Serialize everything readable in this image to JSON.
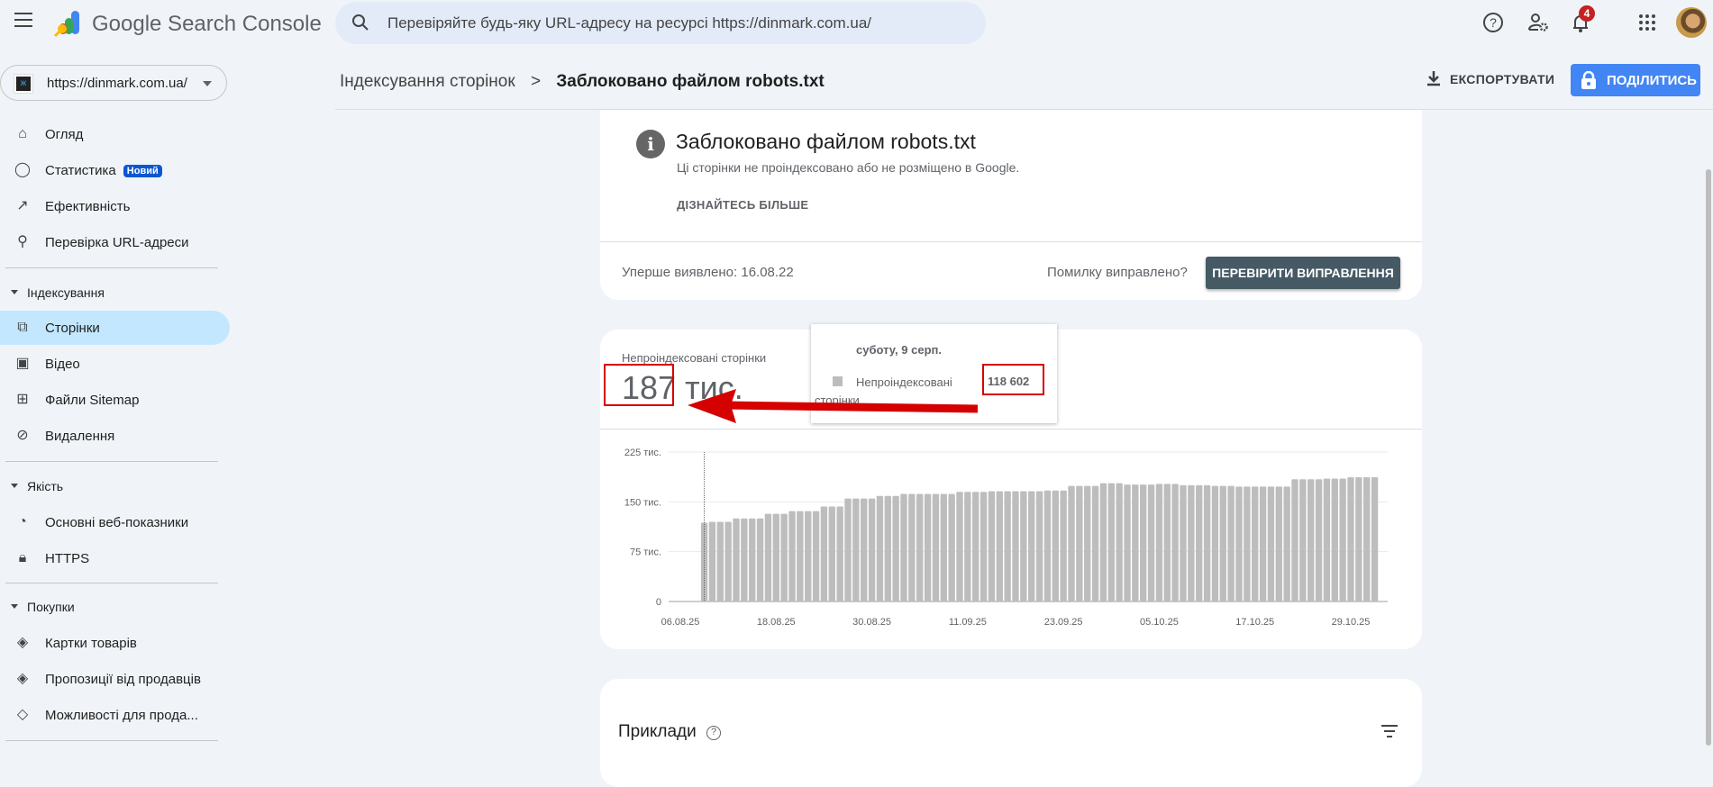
{
  "app": {
    "title": "Google Search Console",
    "search_placeholder": "Перевіряйте будь-яку URL-адресу на ресурсі https://dinmark.com.ua/",
    "notification_count": "4",
    "property": "https://dinmark.com.ua/",
    "property_favicon": "ж"
  },
  "header_icons": [
    "help-icon",
    "admin-settings-icon",
    "bell-icon",
    "apps-icon",
    "avatar"
  ],
  "sidebar": {
    "top_items": [
      {
        "label": "Огляд",
        "icon": "home-icon"
      },
      {
        "label": "Статистика",
        "icon": "lightbulb-icon",
        "badge": "Новий"
      },
      {
        "label": "Ефективність",
        "icon": "trending-up-icon"
      },
      {
        "label": "Перевірка URL-адреси",
        "icon": "search-icon"
      }
    ],
    "sections": [
      {
        "title": "Індексування",
        "items": [
          {
            "label": "Сторінки",
            "icon": "pages-icon",
            "active": true
          },
          {
            "label": "Відео",
            "icon": "video-icon"
          },
          {
            "label": "Файли Sitemap",
            "icon": "sitemap-icon"
          },
          {
            "label": "Видалення",
            "icon": "visibility-off-icon"
          }
        ]
      },
      {
        "title": "Якість",
        "items": [
          {
            "label": "Основні веб-показники",
            "icon": "speed-icon"
          },
          {
            "label": "HTTPS",
            "icon": "lock-icon"
          }
        ]
      },
      {
        "title": "Покупки",
        "items": [
          {
            "label": "Картки товарів",
            "icon": "layers-icon"
          },
          {
            "label": "Пропозиції від продавців",
            "icon": "layers-icon"
          },
          {
            "label": "Можливості для прода...",
            "icon": "tag-icon"
          }
        ]
      }
    ]
  },
  "breadcrumb": {
    "parent": "Індексування сторінок",
    "separator": ">",
    "current": "Заблоковано файлом robots.txt"
  },
  "toolbar": {
    "export": "ЕКСПОРТУВАТИ",
    "share": "ПОДІЛИТИСЬ",
    "share_color": "#4285f4"
  },
  "issue": {
    "title": "Заблоковано файлом robots.txt",
    "subtitle": "Ці сторінки не проіндексовано або не розміщено в Google.",
    "learn_more": "ДІЗНАЙТЕСЬ БІЛЬШЕ",
    "first_detected": "Уперше виявлено: 16.08.22",
    "fixed_question": "Помилку виправлено?",
    "validate": "ПЕРЕВІРИТИ ВИПРАВЛЕННЯ"
  },
  "summary": {
    "label": "Непроіндексовані сторінки",
    "value": "187",
    "unit": "тис."
  },
  "tooltip": {
    "date": "суботу, 9 серп.",
    "series": "Непроіндексовані сторінки",
    "value": "118 602"
  },
  "examples": {
    "title": "Приклади"
  },
  "chart_data": {
    "type": "bar",
    "series": [
      {
        "name": "Непроіндексовані сторінки",
        "color": "#bdbdbd"
      }
    ],
    "ylim": [
      0,
      225000
    ],
    "y_ticks": [
      {
        "v": 0,
        "label": "0"
      },
      {
        "v": 75000,
        "label": "75 тис."
      },
      {
        "v": 150000,
        "label": "150 тис."
      },
      {
        "v": 225000,
        "label": "225 тис."
      }
    ],
    "x_ticks": [
      "06.08.25",
      "18.08.25",
      "30.08.25",
      "11.09.25",
      "23.09.25",
      "05.10.25",
      "17.10.25",
      "29.10.25"
    ],
    "grid": true,
    "dates": [
      "09.08.25",
      "10.08.25",
      "11.08.25",
      "12.08.25",
      "13.08.25",
      "14.08.25",
      "15.08.25",
      "16.08.25",
      "17.08.25",
      "18.08.25",
      "19.08.25",
      "20.08.25",
      "21.08.25",
      "22.08.25",
      "23.08.25",
      "24.08.25",
      "25.08.25",
      "26.08.25",
      "27.08.25",
      "28.08.25",
      "29.08.25",
      "30.08.25",
      "31.08.25",
      "01.09.25",
      "02.09.25",
      "03.09.25",
      "04.09.25",
      "05.09.25",
      "06.09.25",
      "07.09.25",
      "08.09.25",
      "09.09.25",
      "10.09.25",
      "11.09.25",
      "12.09.25",
      "13.09.25",
      "14.09.25",
      "15.09.25",
      "16.09.25",
      "17.09.25",
      "18.09.25",
      "19.09.25",
      "20.09.25",
      "21.09.25",
      "22.09.25",
      "23.09.25",
      "24.09.25",
      "25.09.25",
      "26.09.25",
      "27.09.25",
      "28.09.25",
      "29.09.25",
      "30.09.25",
      "01.10.25",
      "02.10.25",
      "03.10.25",
      "04.10.25",
      "05.10.25",
      "06.10.25",
      "07.10.25",
      "08.10.25",
      "09.10.25",
      "10.10.25",
      "11.10.25",
      "12.10.25",
      "13.10.25",
      "14.10.25",
      "15.10.25",
      "16.10.25",
      "17.10.25",
      "18.10.25",
      "19.10.25",
      "20.10.25",
      "21.10.25",
      "22.10.25",
      "23.10.25",
      "24.10.25",
      "25.10.25",
      "26.10.25",
      "27.10.25",
      "28.10.25",
      "29.10.25",
      "30.10.25",
      "31.10.25",
      "01.11.25"
    ],
    "values": [
      118602,
      120000,
      120000,
      120000,
      125000,
      125000,
      125000,
      125000,
      132000,
      132000,
      132000,
      136000,
      136000,
      136000,
      136000,
      143000,
      143000,
      143000,
      155000,
      155000,
      155000,
      155000,
      159000,
      159000,
      159000,
      162000,
      162000,
      162000,
      162000,
      162000,
      162000,
      162000,
      165000,
      165000,
      165000,
      165000,
      166000,
      166000,
      166000,
      166000,
      166000,
      166000,
      166000,
      167000,
      167000,
      167000,
      174000,
      174000,
      174000,
      174000,
      178000,
      178000,
      178000,
      176000,
      176000,
      176000,
      176000,
      177000,
      177000,
      177000,
      175000,
      175000,
      175000,
      175000,
      174000,
      174000,
      174000,
      173000,
      173000,
      173000,
      173000,
      173000,
      173000,
      173000,
      184000,
      184000,
      184000,
      184000,
      185000,
      185000,
      185000,
      187000,
      187000,
      187000,
      187000
    ],
    "highlighted": "09.08.25"
  }
}
